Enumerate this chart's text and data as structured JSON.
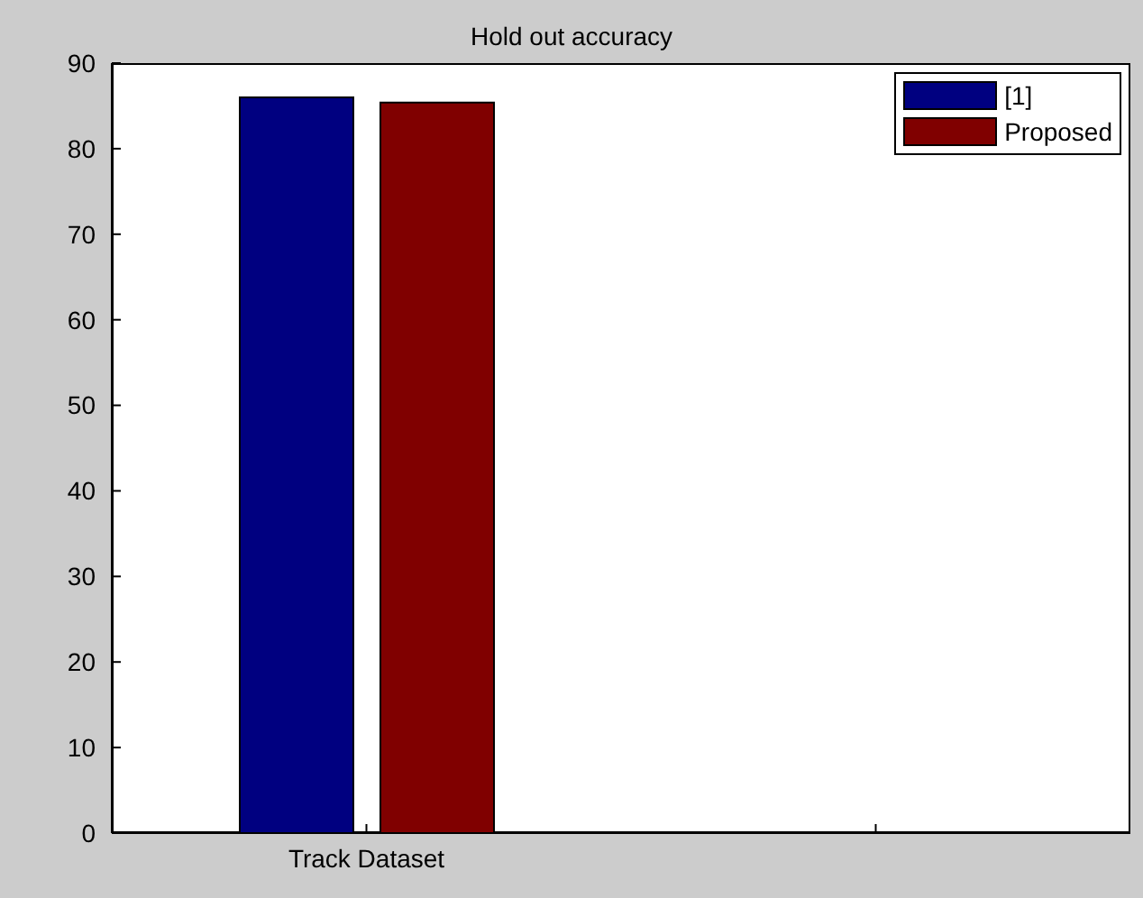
{
  "chart_data": {
    "type": "bar",
    "title": "Hold out accuracy",
    "categories": [
      "Track Dataset",
      null
    ],
    "series": [
      {
        "name": "[1]",
        "color": "#000080",
        "values": [
          86,
          null
        ]
      },
      {
        "name": "Proposed",
        "color": "#800000",
        "values": [
          85.4,
          null
        ]
      }
    ],
    "ylim": [
      0,
      90
    ],
    "yticks": [
      0,
      10,
      20,
      30,
      40,
      50,
      60,
      70,
      80,
      90
    ],
    "legend": "top right"
  }
}
